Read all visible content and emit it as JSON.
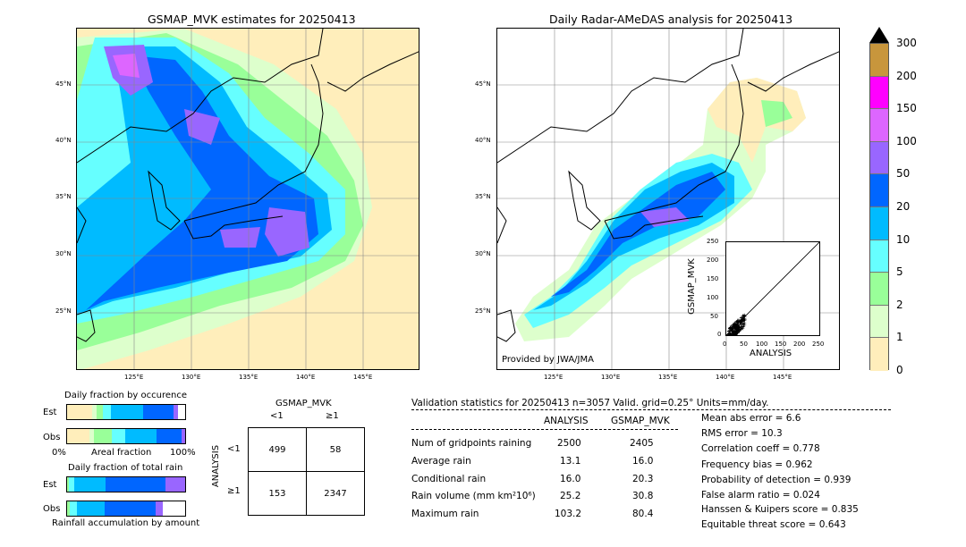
{
  "left_map": {
    "title": "GSMAP_MVK estimates for 20250413",
    "lat_labels": [
      "45°N",
      "40°N",
      "35°N",
      "30°N",
      "25°N"
    ],
    "lon_labels": [
      "125°E",
      "130°E",
      "135°E",
      "140°E",
      "145°E"
    ]
  },
  "right_map": {
    "title": "Daily Radar-AMeDAS analysis for 20250413",
    "lat_labels": [
      "45°N",
      "40°N",
      "35°N",
      "30°N",
      "25°N"
    ],
    "lon_labels": [
      "125°E",
      "130°E",
      "135°E",
      "140°E",
      "145°E"
    ],
    "credit": "Provided by JWA/JMA"
  },
  "colorbar": {
    "ticks": [
      "300",
      "200",
      "150",
      "100",
      "50",
      "20",
      "10",
      "5",
      "2",
      "1",
      "0"
    ],
    "colors": [
      "#c8963c",
      "#ff00ff",
      "#dd66ff",
      "#9966ff",
      "#0066ff",
      "#00bbff",
      "#66ffff",
      "#99ff99",
      "#ddffcc",
      "#ffeebb"
    ]
  },
  "scatter": {
    "xlabel": "ANALYSIS",
    "ylabel": "GSMAP_MVK",
    "ticks": [
      "0",
      "50",
      "100",
      "150",
      "200",
      "250"
    ]
  },
  "occurrence": {
    "title": "Daily fraction by occurence",
    "rows": [
      "Est",
      "Obs"
    ],
    "axis_left": "0%",
    "axis_mid": "Areal fraction",
    "axis_right": "100%"
  },
  "total_rain": {
    "title": "Daily fraction of total rain",
    "rows": [
      "Est",
      "Obs"
    ],
    "footer": "Rainfall accumulation by amount"
  },
  "contingency": {
    "title": "GSMAP_MVK",
    "col_labels": [
      "<1",
      "≥1"
    ],
    "row_axis": "ANALYSIS",
    "row_labels": [
      "<1",
      "≥1"
    ],
    "cells": [
      [
        "499",
        "58"
      ],
      [
        "153",
        "2347"
      ]
    ]
  },
  "validation": {
    "header": "Validation statistics for 20250413  n=3057 Valid. grid=0.25° Units=mm/day.",
    "col_analysis": "ANALYSIS",
    "col_gsmap": "GSMAP_MVK",
    "rows": [
      {
        "label": "Num of gridpoints raining",
        "analysis": "2500",
        "gsmap": "2405"
      },
      {
        "label": "Average rain",
        "analysis": "13.1",
        "gsmap": "16.0"
      },
      {
        "label": "Conditional rain",
        "analysis": "16.0",
        "gsmap": "20.3"
      },
      {
        "label": "Rain volume (mm km²10⁶)",
        "analysis": "25.2",
        "gsmap": "30.8"
      },
      {
        "label": "Maximum rain",
        "analysis": "103.2",
        "gsmap": "80.4"
      }
    ],
    "scores": [
      "Mean abs error =    6.6",
      "RMS error =   10.3",
      "Correlation coeff =  0.778",
      "Frequency bias =  0.962",
      "Probability of detection =  0.939",
      "False alarm ratio =  0.024",
      "Hanssen & Kuipers score =  0.835",
      "Equitable threat score =  0.643"
    ]
  }
}
